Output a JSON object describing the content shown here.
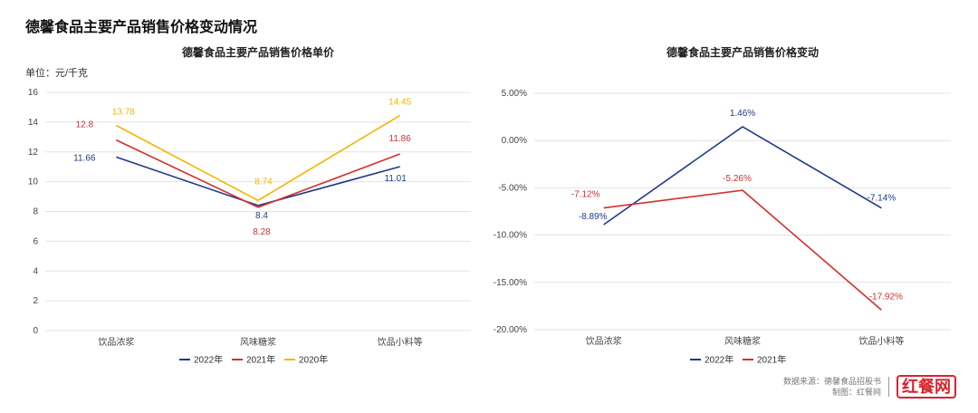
{
  "page_title": "德馨食品主要产品销售价格变动情况",
  "colors": {
    "2022": "#1f3a8a",
    "2021": "#d32f2f",
    "2020": "#f2b600",
    "grid": "#e3e3e3",
    "axis_text": "#444"
  },
  "footer": {
    "source": "数据来源：德馨食品招股书",
    "maker": "制图：红餐网",
    "logo": "红餐网"
  },
  "chart_data": [
    {
      "type": "line",
      "title": "德馨食品主要产品销售价格单价",
      "unit_label": "单位：元/千克",
      "categories": [
        "饮品浓浆",
        "风味糖浆",
        "饮品小料等"
      ],
      "ylim": [
        0,
        16
      ],
      "yticks": [
        "0",
        "2",
        "4",
        "6",
        "8",
        "10",
        "12",
        "14",
        "16"
      ],
      "grid": true,
      "legend_position": "bottom",
      "series": [
        {
          "name": "2022年",
          "color": "#1f3a8a",
          "values": [
            11.66,
            8.4,
            11.01
          ],
          "labels": [
            "11.66",
            "8.4",
            "11.01"
          ]
        },
        {
          "name": "2021年",
          "color": "#d32f2f",
          "values": [
            12.8,
            8.28,
            11.86
          ],
          "labels": [
            "12.8",
            "8.28",
            "11.86"
          ]
        },
        {
          "name": "2020年",
          "color": "#f2b600",
          "values": [
            13.78,
            8.74,
            14.45
          ],
          "labels": [
            "13.78",
            "8.74",
            "14.45"
          ]
        }
      ]
    },
    {
      "type": "line",
      "title": "德馨食品主要产品销售价格变动",
      "categories": [
        "饮品浓浆",
        "风味糖浆",
        "饮品小料等"
      ],
      "ylim": [
        -20,
        5
      ],
      "yticks": [
        "-20.00%",
        "-15.00%",
        "-10.00%",
        "-5.00%",
        "0.00%",
        "5.00%"
      ],
      "grid": true,
      "legend_position": "bottom",
      "series": [
        {
          "name": "2022年",
          "color": "#1f3a8a",
          "values": [
            -8.89,
            1.46,
            -7.14
          ],
          "labels": [
            "-8.89%",
            "1.46%",
            "-7.14%"
          ]
        },
        {
          "name": "2021年",
          "color": "#d32f2f",
          "values": [
            -7.12,
            -5.26,
            -17.92
          ],
          "labels": [
            "-7.12%",
            "-5.26%",
            "-17.92%"
          ]
        }
      ]
    }
  ]
}
